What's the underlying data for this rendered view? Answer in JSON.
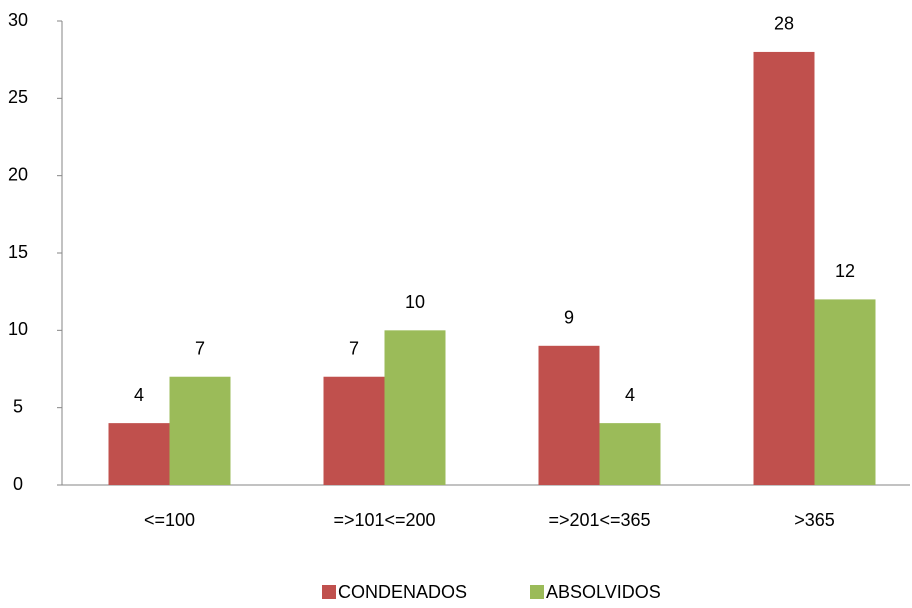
{
  "chart_data": {
    "type": "bar",
    "categories": [
      "<=100",
      "=>101<=200",
      "=>201<=365",
      ">365"
    ],
    "series": [
      {
        "name": "CONDENADOS",
        "color": "#c0504d",
        "values": [
          4,
          7,
          9,
          28
        ]
      },
      {
        "name": "ABSOLVIDOS",
        "color": "#9bbb59",
        "values": [
          7,
          10,
          4,
          12
        ]
      }
    ],
    "ylim": [
      0,
      30
    ],
    "yticks": [
      0,
      5,
      10,
      15,
      20,
      25,
      30
    ],
    "grid": false,
    "legend": "bottom"
  }
}
